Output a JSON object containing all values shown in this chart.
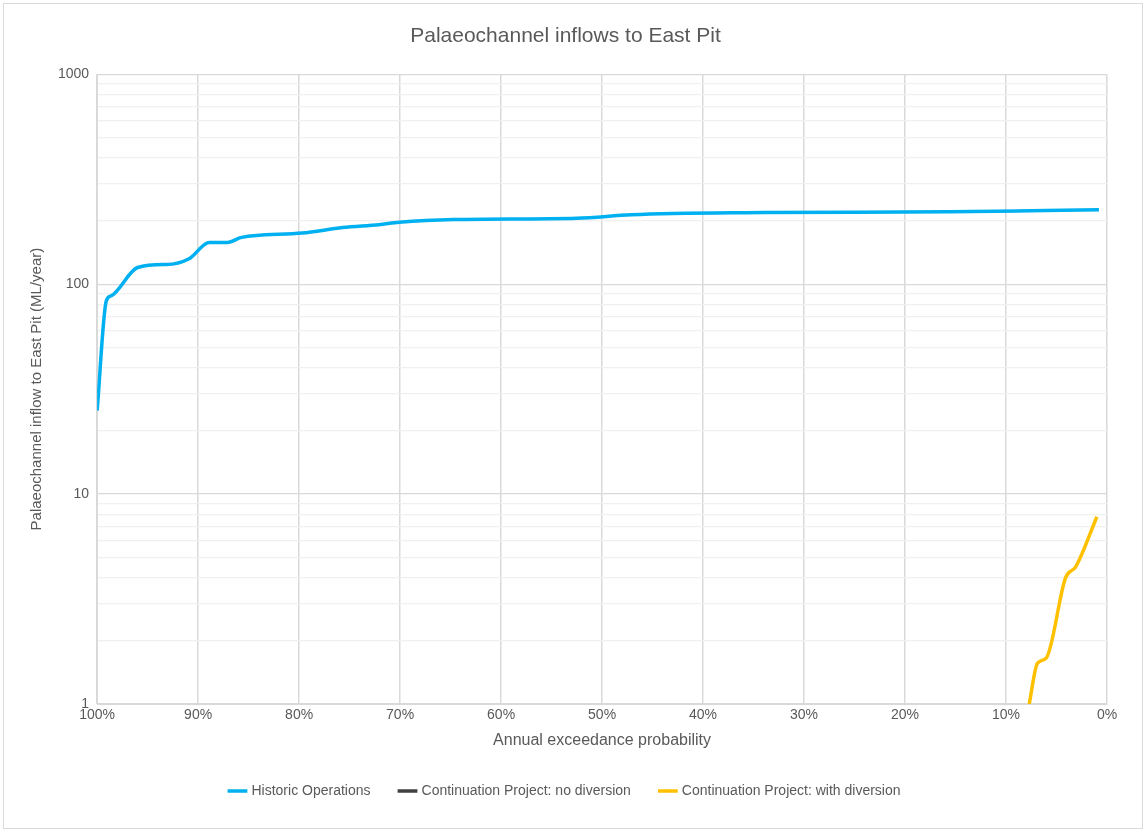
{
  "chart_data": {
    "type": "line",
    "title": "Palaeochannel inflows to East Pit",
    "xlabel": "Annual exceedance probability",
    "ylabel": "Palaeochannel inflow to East Pit (ML/year)",
    "xlim": [
      100,
      0
    ],
    "xticks": [
      {
        "value": 100,
        "label": "100%"
      },
      {
        "value": 90,
        "label": "90%"
      },
      {
        "value": 80,
        "label": "80%"
      },
      {
        "value": 70,
        "label": "70%"
      },
      {
        "value": 60,
        "label": "60%"
      },
      {
        "value": 50,
        "label": "50%"
      },
      {
        "value": 40,
        "label": "40%"
      },
      {
        "value": 30,
        "label": "30%"
      },
      {
        "value": 20,
        "label": "20%"
      },
      {
        "value": 10,
        "label": "10%"
      },
      {
        "value": 0,
        "label": "0%"
      }
    ],
    "ylim": [
      1,
      1000
    ],
    "yticks": [
      1,
      {
        "value": 2,
        "label": null
      },
      {
        "value": 3,
        "label": null
      },
      {
        "value": 4,
        "label": null
      },
      {
        "value": 5,
        "label": null
      },
      {
        "value": 6,
        "label": null
      },
      {
        "value": 7,
        "label": null
      },
      {
        "value": 8,
        "label": null
      },
      {
        "value": 9,
        "label": null
      },
      10,
      {
        "value": 20,
        "label": null
      },
      {
        "value": 30,
        "label": null
      },
      {
        "value": 40,
        "label": null
      },
      {
        "value": 50,
        "label": null
      },
      {
        "value": 60,
        "label": null
      },
      {
        "value": 70,
        "label": null
      },
      {
        "value": 80,
        "label": null
      },
      {
        "value": 90,
        "label": null
      },
      100,
      {
        "value": 200,
        "label": null
      },
      {
        "value": 300,
        "label": null
      },
      {
        "value": 400,
        "label": null
      },
      {
        "value": 500,
        "label": null
      },
      {
        "value": 600,
        "label": null
      },
      {
        "value": 700,
        "label": null
      },
      {
        "value": 800,
        "label": null
      },
      {
        "value": 900,
        "label": null
      },
      1000
    ],
    "log": "y",
    "grid": true,
    "legend": "bottom",
    "marker": "none",
    "line_style": "solid",
    "series": [
      {
        "name": "Historic Operations",
        "color": "#00b0f0",
        "x": [
          100,
          99.1,
          98.6,
          96.0,
          93.4,
          93.1,
          90.9,
          88.9,
          87.1,
          85.7,
          79.7,
          75.7,
          72.1,
          70.1,
          64.7,
          52.5,
          47.1,
          35.8,
          15.6,
          0.8
        ],
        "values": [
          25,
          83,
          88,
          120,
          124,
          124,
          132,
          158,
          158,
          167,
          175,
          186,
          192,
          197,
          203,
          206,
          214,
          219,
          221,
          226
        ]
      },
      {
        "name": "Continuation Project: no diversion",
        "color": "#404040"
      },
      {
        "name": "Continuation Project: with diversion",
        "color": "#ffc000",
        "x": [
          7.7,
          6.9,
          6.0,
          4.1,
          3.1,
          1.0
        ],
        "values": [
          1.0,
          1.56,
          1.66,
          4.0,
          4.5,
          7.8
        ]
      }
    ]
  }
}
